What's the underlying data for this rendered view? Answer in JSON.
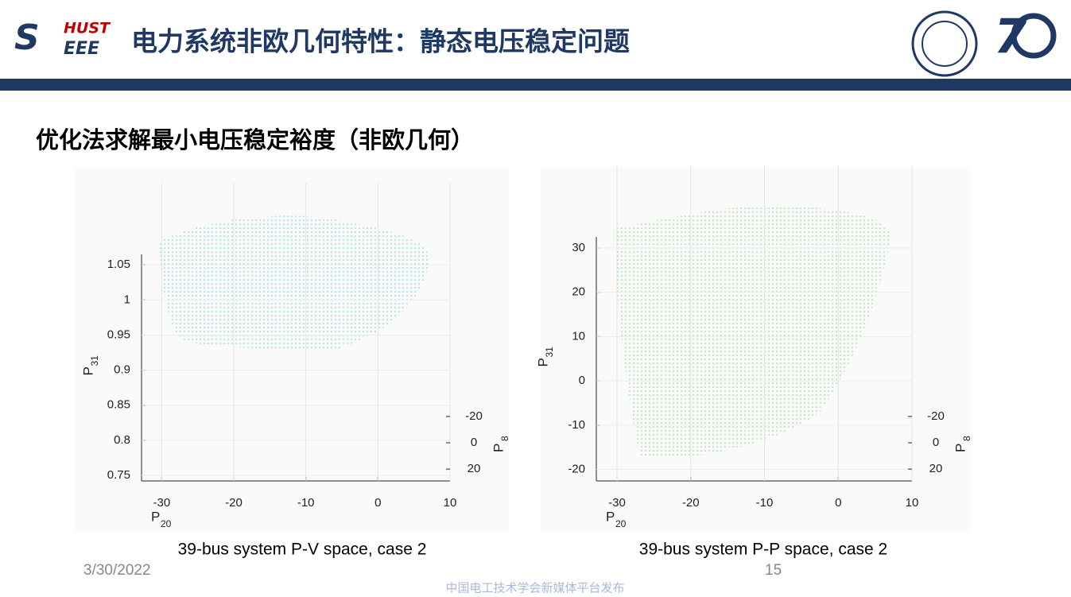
{
  "header": {
    "logo_main": "S",
    "logo_top": "HUST",
    "logo_bottom": "EEE",
    "title": "电力系统非欧几何特性：静态电压稳定问题"
  },
  "subtitle": "优化法求解最小电压稳定裕度（非欧几何）",
  "chart_data": [
    {
      "type": "scatter3d",
      "caption": "39-bus system P-V space, case 2",
      "xlabel": "P",
      "xlabel_sub": "20",
      "ylabel": "P",
      "ylabel_sub": "31",
      "zlabel": "P",
      "zlabel_sub": "8",
      "xlim": [
        -32.8,
        10
      ],
      "xticks": [
        -30,
        -20,
        -10,
        0,
        10
      ],
      "ylim": [
        0.742,
        1.065
      ],
      "yticks": [
        0.75,
        0.8,
        0.85,
        0.9,
        0.95,
        1,
        1.05
      ],
      "zlim": [
        -29,
        29
      ],
      "zticks": [
        -20,
        0,
        20
      ]
    },
    {
      "type": "scatter3d",
      "caption": "39-bus system P-P space, case 2",
      "xlabel": "P",
      "xlabel_sub": "20",
      "ylabel": "P",
      "ylabel_sub": "31",
      "zlabel": "P",
      "zlabel_sub": "8",
      "xlim": [
        -32.8,
        10
      ],
      "xticks": [
        -30,
        -20,
        -10,
        0,
        10
      ],
      "ylim": [
        -22.6,
        32.5
      ],
      "yticks": [
        -20,
        -10,
        0,
        10,
        20,
        30
      ],
      "zlim": [
        -29,
        29
      ],
      "zticks": [
        -20,
        0,
        20
      ]
    }
  ],
  "footer": {
    "date": "3/30/2022",
    "page": "15",
    "source": "中国电工技术学会新媒体平台发布"
  }
}
